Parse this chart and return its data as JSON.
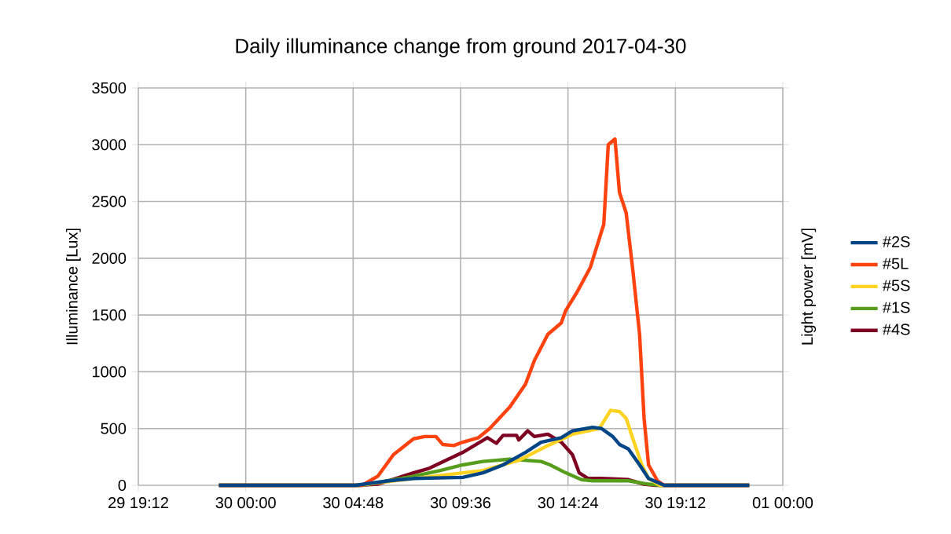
{
  "chart_data": {
    "type": "line",
    "title": "Daily illuminance change from ground 2017-04-30",
    "ylabel": "Illuminance [Lux]",
    "y2label": "Light power [mV]",
    "xlim": [
      "2017-04-29T19:12",
      "2017-05-01T00:00"
    ],
    "xticks": [
      {
        "value": "2017-04-29T19:12",
        "label": "29 19:12"
      },
      {
        "value": "2017-04-30T00:00",
        "label": "30 00:00"
      },
      {
        "value": "2017-04-30T04:48",
        "label": "30 04:48"
      },
      {
        "value": "2017-04-30T09:36",
        "label": "30 09:36"
      },
      {
        "value": "2017-04-30T14:24",
        "label": "30 14:24"
      },
      {
        "value": "2017-04-30T19:12",
        "label": "30 19:12"
      },
      {
        "value": "2017-05-01T00:00",
        "label": "01 00:00"
      }
    ],
    "ylim": [
      0,
      3500
    ],
    "yticks": [
      0,
      500,
      1000,
      1500,
      2000,
      2500,
      3000,
      3500
    ],
    "grid": true,
    "legend": "right",
    "marker": "none",
    "line_style": "solid",
    "series": [
      {
        "name": "#2S",
        "color": "#004586",
        "x": [
          "2017-04-29T22:48",
          "2017-04-30T04:54",
          "2017-04-30T06:24",
          "2017-04-30T07:30",
          "2017-04-30T09:42",
          "2017-04-30T10:36",
          "2017-04-30T11:30",
          "2017-04-30T12:30",
          "2017-04-30T13:12",
          "2017-04-30T14:06",
          "2017-04-30T14:36",
          "2017-04-30T15:30",
          "2017-04-30T15:54",
          "2017-04-30T16:24",
          "2017-04-30T16:42",
          "2017-04-30T17:06",
          "2017-04-30T17:36",
          "2017-04-30T18:00",
          "2017-04-30T18:42",
          "2017-04-30T22:30"
        ],
        "values": [
          0,
          0,
          40,
          60,
          70,
          110,
          180,
          290,
          380,
          420,
          480,
          510,
          500,
          430,
          360,
          320,
          180,
          60,
          0,
          0
        ]
      },
      {
        "name": "#5L",
        "color": "#ff420e",
        "x": [
          "2017-04-29T22:48",
          "2017-04-30T05:12",
          "2017-04-30T05:54",
          "2017-04-30T06:36",
          "2017-04-30T07:30",
          "2017-04-30T08:00",
          "2017-04-30T08:30",
          "2017-04-30T08:48",
          "2017-04-30T09:18",
          "2017-04-30T09:42",
          "2017-04-30T10:24",
          "2017-04-30T10:54",
          "2017-04-30T11:48",
          "2017-04-30T12:30",
          "2017-04-30T12:54",
          "2017-04-30T13:30",
          "2017-04-30T14:06",
          "2017-04-30T14:18",
          "2017-04-30T14:48",
          "2017-04-30T15:24",
          "2017-04-30T16:00",
          "2017-04-30T16:12",
          "2017-04-30T16:30",
          "2017-04-30T16:42",
          "2017-04-30T17:00",
          "2017-04-30T17:18",
          "2017-04-30T17:36",
          "2017-04-30T17:48",
          "2017-04-30T18:00",
          "2017-04-30T18:24",
          "2017-04-30T18:42",
          "2017-04-30T22:30"
        ],
        "values": [
          0,
          0,
          80,
          270,
          410,
          430,
          430,
          360,
          350,
          380,
          420,
          500,
          690,
          890,
          1100,
          1330,
          1430,
          1540,
          1700,
          1920,
          2300,
          3000,
          3050,
          2580,
          2400,
          1890,
          1330,
          590,
          180,
          40,
          0,
          0
        ]
      },
      {
        "name": "#5S",
        "color": "#ffd320",
        "x": [
          "2017-04-29T22:48",
          "2017-04-30T05:00",
          "2017-04-30T07:30",
          "2017-04-30T09:42",
          "2017-04-30T10:36",
          "2017-04-30T12:12",
          "2017-04-30T13:24",
          "2017-04-30T14:36",
          "2017-04-30T15:48",
          "2017-04-30T16:18",
          "2017-04-30T16:42",
          "2017-04-30T17:00",
          "2017-04-30T17:18",
          "2017-04-30T17:42",
          "2017-04-30T18:00",
          "2017-04-30T18:30",
          "2017-04-30T22:30"
        ],
        "values": [
          0,
          0,
          60,
          110,
          130,
          220,
          340,
          450,
          500,
          660,
          650,
          590,
          410,
          180,
          60,
          0,
          0
        ]
      },
      {
        "name": "#1S",
        "color": "#579d1c",
        "x": [
          "2017-04-29T22:48",
          "2017-04-30T05:12",
          "2017-04-30T07:30",
          "2017-04-30T08:42",
          "2017-04-30T09:42",
          "2017-04-30T10:36",
          "2017-04-30T11:48",
          "2017-04-30T13:12",
          "2017-04-30T13:36",
          "2017-04-30T14:18",
          "2017-04-30T15:00",
          "2017-04-30T15:30",
          "2017-04-30T17:06",
          "2017-04-30T18:00",
          "2017-04-30T18:30",
          "2017-04-30T22:30"
        ],
        "values": [
          0,
          0,
          80,
          130,
          180,
          210,
          230,
          210,
          180,
          110,
          50,
          40,
          40,
          10,
          0,
          0
        ]
      },
      {
        "name": "#4S",
        "color": "#7e0021",
        "x": [
          "2017-04-29T22:48",
          "2017-04-30T05:00",
          "2017-04-30T05:54",
          "2017-04-30T07:30",
          "2017-04-30T08:12",
          "2017-04-30T09:42",
          "2017-04-30T10:48",
          "2017-04-30T11:12",
          "2017-04-30T11:30",
          "2017-04-30T12:06",
          "2017-04-30T12:12",
          "2017-04-30T12:36",
          "2017-04-30T12:54",
          "2017-04-30T13:30",
          "2017-04-30T14:06",
          "2017-04-30T14:36",
          "2017-04-30T14:54",
          "2017-04-30T15:18",
          "2017-04-30T15:54",
          "2017-04-30T17:06",
          "2017-04-30T17:48",
          "2017-04-30T18:18",
          "2017-04-30T22:30"
        ],
        "values": [
          0,
          0,
          10,
          110,
          150,
          290,
          420,
          370,
          440,
          440,
          400,
          480,
          430,
          450,
          380,
          270,
          110,
          60,
          60,
          50,
          10,
          0,
          0
        ]
      }
    ]
  }
}
